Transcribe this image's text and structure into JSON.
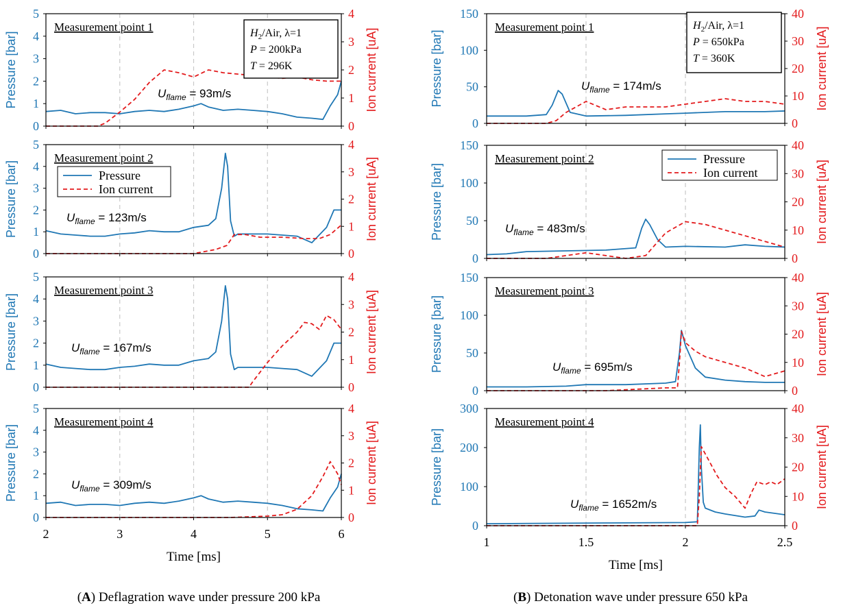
{
  "colors": {
    "pressure": "#1f77b4",
    "ion": "#e31a1c",
    "axis": "#000000",
    "grid": "#c8c8c8"
  },
  "legend": {
    "pressure": "Pressure",
    "ion": "Ion current"
  },
  "captions": {
    "left_letter": "A",
    "left_text": ") Deflagration wave under pressure 200 kPa",
    "right_letter": "B",
    "right_text": ") Detonation wave under pressure 650 kPa"
  },
  "chart_data": [
    {
      "type": "line",
      "title": "(A) Deflagration wave under pressure 200 kPa",
      "xlabel": "Time [ms]",
      "xlim": [
        2,
        6
      ],
      "xticks": [
        "2",
        "3",
        "4",
        "5",
        "6"
      ],
      "ylabel": "Pressure [bar]",
      "y2label": "Ion current [uA]",
      "conditions": [
        "H2/Air, λ=1",
        "P = 200kPa",
        "T = 296K"
      ],
      "legend_position": "upper-left of measurement point 2",
      "panels": [
        {
          "label": "Measurement point 1",
          "velocity": "U_flame = 93m/s",
          "ylim": [
            0,
            5
          ],
          "yticks": [
            "0",
            "1",
            "2",
            "3",
            "4",
            "5"
          ],
          "y2lim": [
            0,
            4
          ],
          "y2ticks": [
            "0",
            "1",
            "2",
            "3",
            "4"
          ],
          "series": [
            {
              "name": "Pressure",
              "x": [
                2.0,
                2.2,
                2.4,
                2.6,
                2.8,
                3.0,
                3.2,
                3.4,
                3.6,
                3.8,
                4.0,
                4.1,
                4.2,
                4.4,
                4.6,
                4.8,
                5.0,
                5.2,
                5.4,
                5.6,
                5.75,
                5.85,
                5.95,
                6.0
              ],
              "values": [
                0.65,
                0.7,
                0.55,
                0.6,
                0.6,
                0.55,
                0.65,
                0.7,
                0.65,
                0.75,
                0.9,
                1.0,
                0.85,
                0.7,
                0.75,
                0.7,
                0.65,
                0.55,
                0.4,
                0.35,
                0.3,
                0.9,
                1.4,
                2.0
              ]
            },
            {
              "name": "Ion current",
              "x": [
                2.0,
                2.7,
                2.8,
                3.0,
                3.2,
                3.4,
                3.6,
                3.8,
                4.0,
                4.2,
                4.4,
                4.6,
                4.8,
                5.0,
                5.2,
                5.4,
                5.6,
                5.8,
                6.0
              ],
              "values": [
                0.0,
                0.0,
                0.1,
                0.5,
                0.95,
                1.55,
                2.0,
                1.9,
                1.75,
                2.0,
                1.9,
                1.85,
                1.8,
                1.75,
                1.7,
                1.75,
                1.65,
                1.6,
                1.6
              ]
            }
          ]
        },
        {
          "label": "Measurement point 2",
          "velocity": "U_flame = 123m/s",
          "ylim": [
            0,
            5
          ],
          "yticks": [
            "0",
            "1",
            "2",
            "3",
            "4",
            "5"
          ],
          "y2lim": [
            0,
            4
          ],
          "y2ticks": [
            "0",
            "1",
            "2",
            "3",
            "4"
          ],
          "series": [
            {
              "name": "Pressure",
              "x": [
                2.0,
                2.2,
                2.4,
                2.6,
                2.8,
                3.0,
                3.2,
                3.4,
                3.6,
                3.8,
                4.0,
                4.2,
                4.3,
                4.38,
                4.43,
                4.46,
                4.5,
                4.55,
                4.6,
                4.8,
                5.0,
                5.2,
                5.4,
                5.6,
                5.8,
                5.9,
                6.0
              ],
              "values": [
                1.05,
                0.9,
                0.85,
                0.8,
                0.8,
                0.9,
                0.95,
                1.05,
                1.0,
                1.0,
                1.2,
                1.3,
                1.6,
                3.0,
                4.6,
                4.0,
                1.5,
                0.8,
                0.9,
                0.9,
                0.9,
                0.85,
                0.8,
                0.5,
                1.2,
                2.0,
                2.0
              ]
            },
            {
              "name": "Ion current",
              "x": [
                2.0,
                3.5,
                4.0,
                4.3,
                4.45,
                4.55,
                4.7,
                4.9,
                5.2,
                5.5,
                5.7,
                5.85,
                6.0
              ],
              "values": [
                0.0,
                0.0,
                0.0,
                0.15,
                0.3,
                0.7,
                0.7,
                0.6,
                0.6,
                0.55,
                0.55,
                0.7,
                1.05
              ]
            }
          ]
        },
        {
          "label": "Measurement point 3",
          "velocity": "U_flame = 167m/s",
          "ylim": [
            0,
            5
          ],
          "yticks": [
            "0",
            "1",
            "2",
            "3",
            "4",
            "5"
          ],
          "y2lim": [
            0,
            4
          ],
          "y2ticks": [
            "0",
            "1",
            "2",
            "3",
            "4"
          ],
          "series": [
            {
              "name": "Pressure",
              "x": [
                2.0,
                2.2,
                2.4,
                2.6,
                2.8,
                3.0,
                3.2,
                3.4,
                3.6,
                3.8,
                4.0,
                4.2,
                4.3,
                4.38,
                4.43,
                4.46,
                4.5,
                4.55,
                4.6,
                4.8,
                5.0,
                5.2,
                5.4,
                5.6,
                5.8,
                5.9,
                6.0
              ],
              "values": [
                1.05,
                0.9,
                0.85,
                0.8,
                0.8,
                0.9,
                0.95,
                1.05,
                1.0,
                1.0,
                1.2,
                1.3,
                1.6,
                3.0,
                4.6,
                4.0,
                1.5,
                0.8,
                0.9,
                0.9,
                0.9,
                0.85,
                0.8,
                0.5,
                1.2,
                2.0,
                2.0
              ]
            },
            {
              "name": "Ion current",
              "x": [
                2.0,
                4.75,
                4.8,
                4.9,
                5.0,
                5.1,
                5.2,
                5.3,
                5.4,
                5.5,
                5.6,
                5.7,
                5.8,
                5.9,
                6.0
              ],
              "values": [
                0.0,
                0.0,
                0.2,
                0.55,
                0.9,
                1.2,
                1.5,
                1.75,
                2.0,
                2.35,
                2.3,
                2.1,
                2.6,
                2.45,
                2.1
              ]
            }
          ]
        },
        {
          "label": "Measurement point 4",
          "velocity": "U_flame = 309m/s",
          "ylim": [
            0,
            5
          ],
          "yticks": [
            "0",
            "1",
            "2",
            "3",
            "4",
            "5"
          ],
          "y2lim": [
            0,
            4
          ],
          "y2ticks": [
            "0",
            "1",
            "2",
            "3",
            "4"
          ],
          "series": [
            {
              "name": "Pressure",
              "x": [
                2.0,
                2.2,
                2.4,
                2.6,
                2.8,
                3.0,
                3.2,
                3.4,
                3.6,
                3.8,
                4.0,
                4.1,
                4.2,
                4.4,
                4.6,
                4.8,
                5.0,
                5.2,
                5.4,
                5.6,
                5.75,
                5.85,
                5.95,
                6.0
              ],
              "values": [
                0.65,
                0.7,
                0.55,
                0.6,
                0.6,
                0.55,
                0.65,
                0.7,
                0.65,
                0.75,
                0.9,
                1.0,
                0.85,
                0.7,
                0.75,
                0.7,
                0.65,
                0.55,
                0.4,
                0.35,
                0.3,
                0.9,
                1.4,
                2.0
              ]
            },
            {
              "name": "Ion current",
              "x": [
                2.0,
                4.5,
                5.0,
                5.2,
                5.4,
                5.6,
                5.75,
                5.85,
                5.95,
                6.0
              ],
              "values": [
                0.0,
                0.0,
                0.05,
                0.1,
                0.3,
                0.8,
                1.5,
                2.05,
                1.6,
                1.2
              ]
            }
          ]
        }
      ]
    },
    {
      "type": "line",
      "title": "(B) Detonation wave under pressure 650 kPa",
      "xlabel": "Time [ms]",
      "xlim": [
        1,
        2.5
      ],
      "xticks": [
        "1",
        "1.5",
        "2",
        "2.5"
      ],
      "ylabel": "Pressure [bar]",
      "y2label": "Ion current [uA]",
      "conditions": [
        "H2/Air, λ=1",
        "P = 650kPa",
        "T = 360K"
      ],
      "legend_position": "upper-right of measurement point 2",
      "panels": [
        {
          "label": "Measurement point 1",
          "velocity": "U_flame = 174m/s",
          "ylim": [
            0,
            150
          ],
          "yticks": [
            "0",
            "50",
            "100",
            "150"
          ],
          "y2lim": [
            0,
            40
          ],
          "y2ticks": [
            "0",
            "10",
            "20",
            "30",
            "40"
          ],
          "series": [
            {
              "name": "Pressure",
              "x": [
                1.0,
                1.2,
                1.3,
                1.33,
                1.36,
                1.38,
                1.42,
                1.5,
                1.7,
                1.9,
                2.0,
                2.2,
                2.4,
                2.5
              ],
              "values": [
                10,
                10,
                12,
                25,
                45,
                40,
                15,
                10,
                11,
                13,
                14,
                16,
                16,
                17
              ]
            },
            {
              "name": "Ion current",
              "x": [
                1.0,
                1.05,
                1.2,
                1.3,
                1.35,
                1.4,
                1.5,
                1.6,
                1.7,
                1.8,
                1.9,
                2.0,
                2.1,
                2.2,
                2.3,
                2.4,
                2.5
              ],
              "values": [
                0,
                0,
                0,
                0,
                1,
                4,
                8,
                5,
                6,
                6,
                6,
                7,
                8,
                9,
                8,
                8,
                7
              ]
            }
          ]
        },
        {
          "label": "Measurement point 2",
          "velocity": "U_flame = 483m/s",
          "ylim": [
            0,
            150
          ],
          "yticks": [
            "0",
            "50",
            "100",
            "150"
          ],
          "y2lim": [
            0,
            40
          ],
          "y2ticks": [
            "0",
            "10",
            "20",
            "30",
            "40"
          ],
          "series": [
            {
              "name": "Pressure",
              "x": [
                1.0,
                1.1,
                1.2,
                1.4,
                1.6,
                1.75,
                1.78,
                1.8,
                1.82,
                1.86,
                1.9,
                2.0,
                2.2,
                2.3,
                2.4,
                2.5
              ],
              "values": [
                5,
                6,
                9,
                10,
                11,
                14,
                40,
                52,
                45,
                25,
                15,
                16,
                15,
                18,
                16,
                15
              ]
            },
            {
              "name": "Ion current",
              "x": [
                1.0,
                1.3,
                1.4,
                1.5,
                1.6,
                1.7,
                1.8,
                1.85,
                1.9,
                1.95,
                2.0,
                2.1,
                2.2,
                2.3,
                2.4,
                2.5
              ],
              "values": [
                0,
                0,
                1,
                2,
                1,
                0,
                1,
                5,
                9,
                11,
                13,
                12,
                10,
                8,
                6,
                4
              ]
            }
          ]
        },
        {
          "label": "Measurement point 3",
          "velocity": "U_flame = 695m/s",
          "ylim": [
            0,
            150
          ],
          "yticks": [
            "0",
            "50",
            "100",
            "150"
          ],
          "y2lim": [
            0,
            40
          ],
          "y2ticks": [
            "0",
            "10",
            "20",
            "30",
            "40"
          ],
          "series": [
            {
              "name": "Pressure",
              "x": [
                1.0,
                1.2,
                1.4,
                1.5,
                1.7,
                1.9,
                1.95,
                1.97,
                1.98,
                2.0,
                2.05,
                2.1,
                2.2,
                2.3,
                2.4,
                2.5
              ],
              "values": [
                5,
                5,
                6,
                8,
                8,
                10,
                12,
                50,
                80,
                60,
                30,
                18,
                14,
                12,
                11,
                11
              ]
            },
            {
              "name": "Ion current",
              "x": [
                1.0,
                1.6,
                1.9,
                1.96,
                1.97,
                1.98,
                2.0,
                2.05,
                2.1,
                2.2,
                2.3,
                2.4,
                2.5
              ],
              "values": [
                0,
                0,
                1,
                1,
                10,
                21,
                17,
                14,
                12,
                10,
                8,
                5,
                7
              ]
            }
          ]
        },
        {
          "label": "Measurement point 4",
          "velocity": "U_flame = 1652m/s",
          "ylim": [
            0,
            300
          ],
          "yticks": [
            "0",
            "100",
            "200",
            "300"
          ],
          "y2lim": [
            0,
            40
          ],
          "y2ticks": [
            "0",
            "10",
            "20",
            "30",
            "40"
          ],
          "series": [
            {
              "name": "Pressure",
              "x": [
                1.0,
                1.6,
                2.0,
                2.06,
                2.07,
                2.075,
                2.08,
                2.09,
                2.1,
                2.15,
                2.2,
                2.3,
                2.35,
                2.37,
                2.4,
                2.5
              ],
              "values": [
                5,
                7,
                8,
                10,
                200,
                258,
                150,
                60,
                45,
                35,
                30,
                22,
                25,
                40,
                35,
                28
              ]
            },
            {
              "name": "Ion current",
              "x": [
                1.0,
                2.06,
                2.07,
                2.08,
                2.12,
                2.16,
                2.2,
                2.25,
                2.3,
                2.33,
                2.36,
                2.4,
                2.43,
                2.46,
                2.5
              ],
              "values": [
                0,
                0,
                10,
                27,
                22,
                17,
                13,
                10,
                6,
                11,
                15,
                14,
                15,
                14,
                16
              ]
            }
          ]
        }
      ]
    }
  ]
}
